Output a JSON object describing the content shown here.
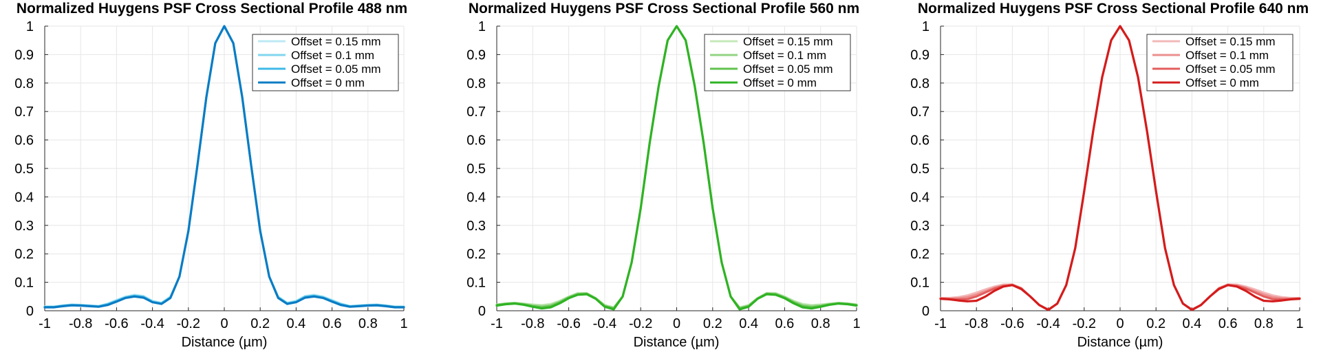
{
  "chart_data": [
    {
      "type": "line",
      "title": "Normalized Huygens PSF Cross Sectional Profile 488 nm",
      "xlabel": "Distance (µm)",
      "ylabel": "",
      "xlim": [
        -1,
        1
      ],
      "ylim": [
        0,
        1
      ],
      "grid": true,
      "legend_position": "top-right",
      "x_ticks": [
        "-1",
        "-0.8",
        "-0.6",
        "-0.4",
        "-0.2",
        "0",
        "0.2",
        "0.4",
        "0.6",
        "0.8",
        "1"
      ],
      "y_ticks": [
        "0",
        "0.1",
        "0.2",
        "0.3",
        "0.4",
        "0.5",
        "0.6",
        "0.7",
        "0.8",
        "0.9",
        "1"
      ],
      "x": [
        -1,
        -0.95,
        -0.9,
        -0.85,
        -0.8,
        -0.75,
        -0.7,
        -0.65,
        -0.6,
        -0.55,
        -0.5,
        -0.45,
        -0.4,
        -0.35,
        -0.3,
        -0.25,
        -0.2,
        -0.15,
        -0.1,
        -0.05,
        0,
        0.05,
        0.1,
        0.15,
        0.2,
        0.25,
        0.3,
        0.35,
        0.4,
        0.45,
        0.5,
        0.55,
        0.6,
        0.65,
        0.7,
        0.75,
        0.8,
        0.85,
        0.9,
        0.95,
        1
      ],
      "series": [
        {
          "name": "Offset = 0.15 mm",
          "color": "#bde9f4",
          "values": [
            0.015,
            0.015,
            0.019,
            0.022,
            0.021,
            0.019,
            0.017,
            0.025,
            0.038,
            0.05,
            0.056,
            0.052,
            0.035,
            0.028,
            0.05,
            0.12,
            0.28,
            0.51,
            0.75,
            0.94,
            1.0,
            0.94,
            0.75,
            0.51,
            0.28,
            0.12,
            0.05,
            0.028,
            0.035,
            0.052,
            0.056,
            0.05,
            0.038,
            0.025,
            0.017,
            0.019,
            0.021,
            0.022,
            0.019,
            0.015,
            0.015
          ]
        },
        {
          "name": "Offset = 0.1 mm",
          "color": "#7fd6ef",
          "values": [
            0.014,
            0.014,
            0.018,
            0.021,
            0.02,
            0.018,
            0.016,
            0.024,
            0.036,
            0.048,
            0.054,
            0.05,
            0.033,
            0.027,
            0.048,
            0.12,
            0.28,
            0.51,
            0.75,
            0.94,
            1.0,
            0.94,
            0.75,
            0.51,
            0.28,
            0.12,
            0.048,
            0.027,
            0.033,
            0.05,
            0.054,
            0.048,
            0.036,
            0.024,
            0.016,
            0.018,
            0.02,
            0.021,
            0.018,
            0.014,
            0.014
          ]
        },
        {
          "name": "Offset = 0.05 mm",
          "color": "#3fb8e6",
          "values": [
            0.013,
            0.013,
            0.017,
            0.02,
            0.019,
            0.017,
            0.015,
            0.022,
            0.034,
            0.046,
            0.052,
            0.048,
            0.031,
            0.025,
            0.046,
            0.12,
            0.28,
            0.51,
            0.75,
            0.94,
            1.0,
            0.94,
            0.75,
            0.51,
            0.28,
            0.12,
            0.046,
            0.025,
            0.031,
            0.048,
            0.052,
            0.046,
            0.034,
            0.022,
            0.015,
            0.017,
            0.019,
            0.02,
            0.017,
            0.013,
            0.013
          ]
        },
        {
          "name": "Offset = 0 mm",
          "color": "#0a7cc4",
          "values": [
            0.012,
            0.012,
            0.016,
            0.019,
            0.018,
            0.016,
            0.014,
            0.02,
            0.032,
            0.045,
            0.05,
            0.046,
            0.03,
            0.024,
            0.045,
            0.12,
            0.28,
            0.51,
            0.75,
            0.94,
            1.0,
            0.94,
            0.75,
            0.51,
            0.28,
            0.12,
            0.045,
            0.024,
            0.03,
            0.046,
            0.05,
            0.045,
            0.032,
            0.02,
            0.014,
            0.016,
            0.018,
            0.019,
            0.016,
            0.012,
            0.012
          ]
        }
      ]
    },
    {
      "type": "line",
      "title": "Normalized Huygens PSF Cross Sectional Profile 560 nm",
      "xlabel": "Distance (µm)",
      "ylabel": "",
      "xlim": [
        -1,
        1
      ],
      "ylim": [
        0,
        1
      ],
      "grid": true,
      "legend_position": "top-right",
      "x_ticks": [
        "-1",
        "-0.8",
        "-0.6",
        "-0.4",
        "-0.2",
        "0",
        "0.2",
        "0.4",
        "0.6",
        "0.8",
        "1"
      ],
      "y_ticks": [
        "0",
        "0.1",
        "0.2",
        "0.3",
        "0.4",
        "0.5",
        "0.6",
        "0.7",
        "0.8",
        "0.9",
        "1"
      ],
      "x": [
        -1,
        -0.95,
        -0.9,
        -0.85,
        -0.8,
        -0.75,
        -0.7,
        -0.65,
        -0.6,
        -0.55,
        -0.5,
        -0.45,
        -0.4,
        -0.35,
        -0.3,
        -0.25,
        -0.2,
        -0.15,
        -0.1,
        -0.05,
        0,
        0.05,
        0.1,
        0.15,
        0.2,
        0.25,
        0.3,
        0.35,
        0.4,
        0.45,
        0.5,
        0.55,
        0.6,
        0.65,
        0.7,
        0.75,
        0.8,
        0.85,
        0.9,
        0.95,
        1
      ],
      "series": [
        {
          "name": "Offset = 0.15 mm",
          "color": "#c5e8b8",
          "values": [
            0.022,
            0.026,
            0.028,
            0.025,
            0.022,
            0.02,
            0.024,
            0.035,
            0.05,
            0.062,
            0.062,
            0.045,
            0.02,
            0.012,
            0.05,
            0.17,
            0.36,
            0.59,
            0.79,
            0.95,
            1.0,
            0.95,
            0.79,
            0.59,
            0.36,
            0.17,
            0.05,
            0.012,
            0.02,
            0.045,
            0.062,
            0.062,
            0.05,
            0.035,
            0.024,
            0.02,
            0.022,
            0.025,
            0.028,
            0.026,
            0.022
          ]
        },
        {
          "name": "Offset = 0.1 mm",
          "color": "#93d483",
          "values": [
            0.021,
            0.025,
            0.027,
            0.024,
            0.019,
            0.016,
            0.02,
            0.032,
            0.048,
            0.06,
            0.061,
            0.044,
            0.018,
            0.01,
            0.05,
            0.17,
            0.36,
            0.59,
            0.79,
            0.95,
            1.0,
            0.95,
            0.79,
            0.59,
            0.36,
            0.17,
            0.05,
            0.01,
            0.018,
            0.044,
            0.061,
            0.06,
            0.048,
            0.032,
            0.02,
            0.016,
            0.019,
            0.024,
            0.027,
            0.025,
            0.021
          ]
        },
        {
          "name": "Offset = 0.05 mm",
          "color": "#62c14e",
          "values": [
            0.02,
            0.024,
            0.026,
            0.022,
            0.016,
            0.012,
            0.016,
            0.029,
            0.046,
            0.058,
            0.06,
            0.043,
            0.016,
            0.008,
            0.05,
            0.17,
            0.36,
            0.59,
            0.79,
            0.95,
            1.0,
            0.95,
            0.79,
            0.59,
            0.36,
            0.17,
            0.05,
            0.008,
            0.016,
            0.043,
            0.06,
            0.058,
            0.046,
            0.029,
            0.016,
            0.012,
            0.016,
            0.022,
            0.026,
            0.024,
            0.02
          ]
        },
        {
          "name": "Offset = 0 mm",
          "color": "#2fb324",
          "values": [
            0.018,
            0.023,
            0.025,
            0.021,
            0.014,
            0.008,
            0.012,
            0.026,
            0.044,
            0.056,
            0.058,
            0.042,
            0.014,
            0.005,
            0.05,
            0.17,
            0.36,
            0.59,
            0.79,
            0.95,
            1.0,
            0.95,
            0.79,
            0.59,
            0.36,
            0.17,
            0.05,
            0.005,
            0.014,
            0.042,
            0.058,
            0.056,
            0.044,
            0.026,
            0.012,
            0.008,
            0.014,
            0.021,
            0.025,
            0.023,
            0.018
          ]
        }
      ]
    },
    {
      "type": "line",
      "title": "Normalized Huygens PSF Cross Sectional Profile 640 nm",
      "xlabel": "Distance (µm)",
      "ylabel": "",
      "xlim": [
        -1,
        1
      ],
      "ylim": [
        0,
        1
      ],
      "grid": true,
      "legend_position": "top-right",
      "x_ticks": [
        "-1",
        "-0.8",
        "-0.6",
        "-0.4",
        "-0.2",
        "0",
        "0.2",
        "0.4",
        "0.6",
        "0.8",
        "1"
      ],
      "y_ticks": [
        "0",
        "0.1",
        "0.2",
        "0.3",
        "0.4",
        "0.5",
        "0.6",
        "0.7",
        "0.8",
        "0.9",
        "1"
      ],
      "x": [
        -1,
        -0.95,
        -0.9,
        -0.85,
        -0.8,
        -0.75,
        -0.7,
        -0.65,
        -0.6,
        -0.55,
        -0.5,
        -0.45,
        -0.4,
        -0.35,
        -0.3,
        -0.25,
        -0.2,
        -0.15,
        -0.1,
        -0.05,
        0,
        0.05,
        0.1,
        0.15,
        0.2,
        0.25,
        0.3,
        0.35,
        0.4,
        0.45,
        0.5,
        0.55,
        0.6,
        0.65,
        0.7,
        0.75,
        0.8,
        0.85,
        0.9,
        0.95,
        1
      ],
      "series": [
        {
          "name": "Offset = 0.15 mm",
          "color": "#f2b8b8",
          "values": [
            0.045,
            0.045,
            0.048,
            0.054,
            0.064,
            0.075,
            0.085,
            0.092,
            0.093,
            0.08,
            0.05,
            0.02,
            0.004,
            0.025,
            0.09,
            0.22,
            0.42,
            0.63,
            0.82,
            0.95,
            1.0,
            0.95,
            0.82,
            0.63,
            0.42,
            0.22,
            0.09,
            0.025,
            0.004,
            0.02,
            0.05,
            0.08,
            0.093,
            0.092,
            0.085,
            0.075,
            0.064,
            0.054,
            0.048,
            0.045,
            0.045
          ]
        },
        {
          "name": "Offset = 0.1 mm",
          "color": "#ec8f8f",
          "values": [
            0.044,
            0.043,
            0.044,
            0.048,
            0.057,
            0.069,
            0.081,
            0.089,
            0.091,
            0.079,
            0.05,
            0.02,
            0.004,
            0.025,
            0.09,
            0.22,
            0.42,
            0.63,
            0.82,
            0.95,
            1.0,
            0.95,
            0.82,
            0.63,
            0.42,
            0.22,
            0.09,
            0.025,
            0.004,
            0.02,
            0.05,
            0.079,
            0.091,
            0.089,
            0.081,
            0.069,
            0.057,
            0.048,
            0.044,
            0.043,
            0.044
          ]
        },
        {
          "name": "Offset = 0.05 mm",
          "color": "#e35d5d",
          "values": [
            0.043,
            0.041,
            0.04,
            0.041,
            0.05,
            0.064,
            0.078,
            0.087,
            0.09,
            0.078,
            0.05,
            0.02,
            0.004,
            0.025,
            0.09,
            0.22,
            0.42,
            0.63,
            0.82,
            0.95,
            1.0,
            0.95,
            0.82,
            0.63,
            0.42,
            0.22,
            0.09,
            0.025,
            0.004,
            0.02,
            0.05,
            0.078,
            0.09,
            0.087,
            0.078,
            0.064,
            0.05,
            0.041,
            0.04,
            0.041,
            0.043
          ]
        },
        {
          "name": "Offset = 0 mm",
          "color": "#d41c1c",
          "values": [
            0.042,
            0.04,
            0.036,
            0.033,
            0.035,
            0.05,
            0.07,
            0.085,
            0.09,
            0.076,
            0.05,
            0.02,
            0.003,
            0.025,
            0.09,
            0.22,
            0.42,
            0.63,
            0.82,
            0.95,
            1.0,
            0.95,
            0.82,
            0.63,
            0.42,
            0.22,
            0.09,
            0.025,
            0.003,
            0.02,
            0.05,
            0.076,
            0.09,
            0.085,
            0.07,
            0.05,
            0.035,
            0.033,
            0.036,
            0.04,
            0.042
          ]
        }
      ]
    }
  ]
}
